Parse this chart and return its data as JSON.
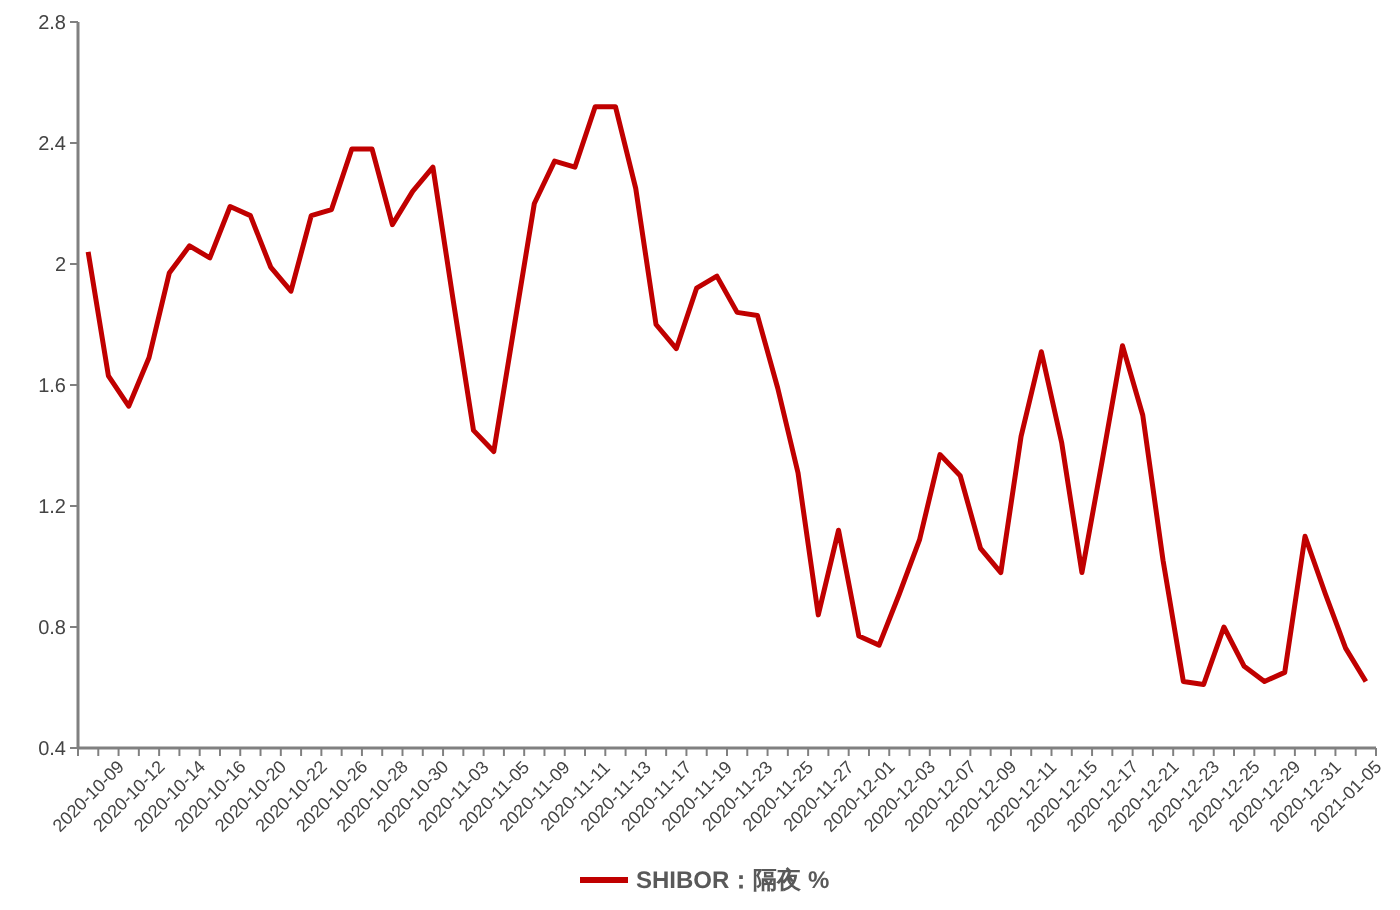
{
  "chart_data": {
    "type": "line",
    "categories": [
      "2020-10-09",
      null,
      "2020-10-12",
      null,
      "2020-10-14",
      null,
      "2020-10-16",
      null,
      "2020-10-20",
      null,
      "2020-10-22",
      null,
      "2020-10-26",
      null,
      "2020-10-28",
      null,
      "2020-10-30",
      null,
      "2020-11-03",
      null,
      "2020-11-05",
      null,
      "2020-11-09",
      null,
      "2020-11-11",
      null,
      "2020-11-13",
      null,
      "2020-11-17",
      null,
      "2020-11-19",
      null,
      "2020-11-23",
      null,
      "2020-11-25",
      null,
      "2020-11-27",
      null,
      "2020-12-01",
      null,
      "2020-12-03",
      null,
      "2020-12-07",
      null,
      "2020-12-09",
      null,
      "2020-12-11",
      null,
      "2020-12-15",
      null,
      "2020-12-17",
      null,
      "2020-12-21",
      null,
      "2020-12-23",
      null,
      "2020-12-25",
      null,
      "2020-12-29",
      null,
      "2020-12-31",
      null,
      "2021-01-05",
      null
    ],
    "series": [
      {
        "name": "SHIBOR：隔夜 %",
        "color": "#c00000",
        "values": [
          2.04,
          1.63,
          1.53,
          1.69,
          1.97,
          2.06,
          2.02,
          2.19,
          2.16,
          1.99,
          1.91,
          2.16,
          2.18,
          2.38,
          2.38,
          2.13,
          2.24,
          2.32,
          1.88,
          1.45,
          1.38,
          1.79,
          2.2,
          2.34,
          2.32,
          2.52,
          2.52,
          2.25,
          1.8,
          1.72,
          1.92,
          1.96,
          1.84,
          1.83,
          1.59,
          1.31,
          0.84,
          1.12,
          0.77,
          0.74,
          0.91,
          1.09,
          1.37,
          1.3,
          1.06,
          0.98,
          1.43,
          1.71,
          1.41,
          0.98,
          1.35,
          1.73,
          1.5,
          1.02,
          0.62,
          0.61,
          0.8,
          0.67,
          0.62,
          0.65,
          1.1,
          0.91,
          0.73,
          0.62
        ]
      }
    ],
    "ylim": [
      0.4,
      2.8
    ],
    "yticks": [
      0.4,
      0.8,
      1.2,
      1.6,
      2,
      2.4,
      2.8
    ],
    "grid": false,
    "legend": "bottom",
    "marker": "none",
    "line_style": "solid"
  }
}
